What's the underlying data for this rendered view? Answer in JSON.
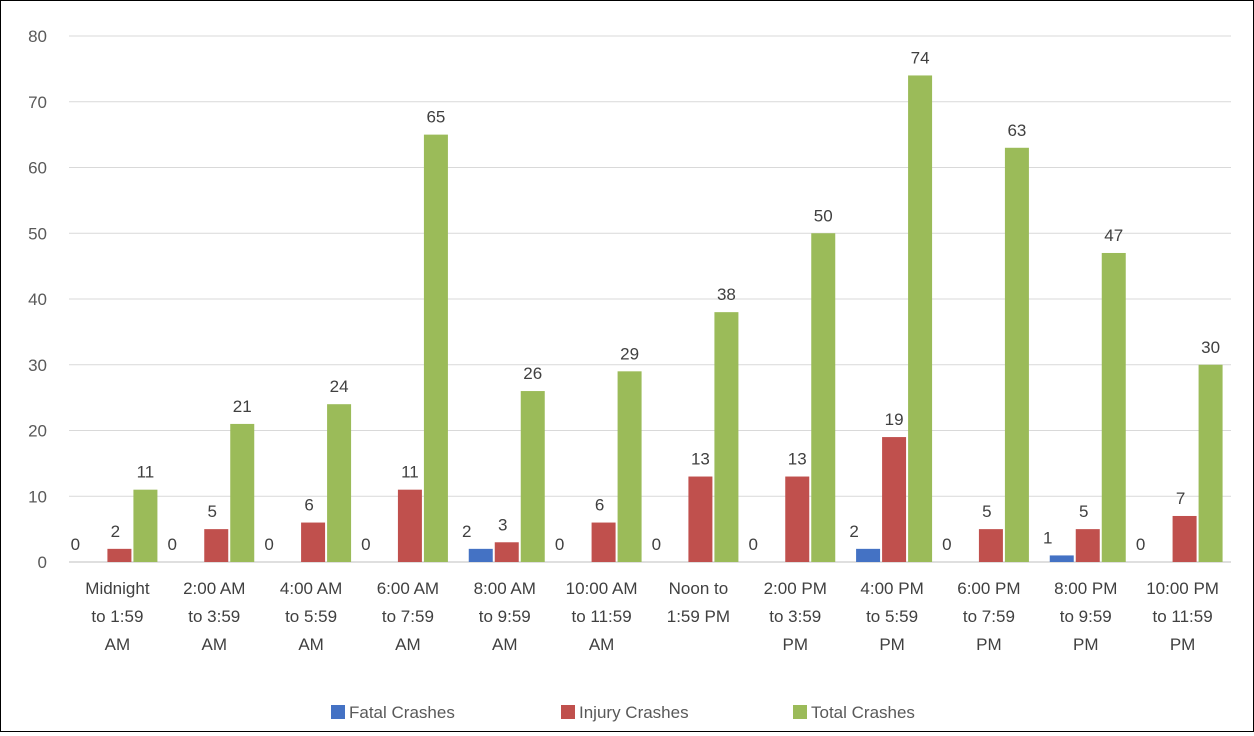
{
  "chart_data": {
    "type": "bar",
    "title": "",
    "xlabel": "",
    "ylabel": "",
    "ylim": [
      0,
      80
    ],
    "yticks": [
      0,
      10,
      20,
      30,
      40,
      50,
      60,
      70,
      80
    ],
    "grid": true,
    "legend_position": "bottom",
    "categories": [
      [
        "Midnight",
        "to 1:59",
        "AM"
      ],
      [
        "2:00 AM",
        "to 3:59",
        "AM"
      ],
      [
        "4:00 AM",
        "to 5:59",
        "AM"
      ],
      [
        "6:00 AM",
        "to 7:59",
        "AM"
      ],
      [
        "8:00 AM",
        "to 9:59",
        "AM"
      ],
      [
        "10:00 AM",
        "to 11:59",
        "AM"
      ],
      [
        "Noon to",
        "1:59 PM"
      ],
      [
        "2:00 PM",
        "to 3:59",
        "PM"
      ],
      [
        "4:00 PM",
        "to 5:59",
        "PM"
      ],
      [
        "6:00 PM",
        "to 7:59",
        "PM"
      ],
      [
        "8:00 PM",
        "to 9:59",
        "PM"
      ],
      [
        "10:00 PM",
        "to 11:59",
        "PM"
      ]
    ],
    "series": [
      {
        "name": "Fatal Crashes",
        "color": "#4472c4",
        "values": [
          0,
          0,
          0,
          0,
          2,
          0,
          0,
          0,
          2,
          0,
          1,
          0
        ]
      },
      {
        "name": "Injury Crashes",
        "color": "#c0504d",
        "values": [
          2,
          5,
          6,
          11,
          3,
          6,
          13,
          13,
          19,
          5,
          5,
          7
        ]
      },
      {
        "name": "Total Crashes",
        "color": "#9bbb59",
        "values": [
          11,
          21,
          24,
          65,
          26,
          29,
          38,
          50,
          74,
          63,
          47,
          30
        ]
      }
    ]
  }
}
